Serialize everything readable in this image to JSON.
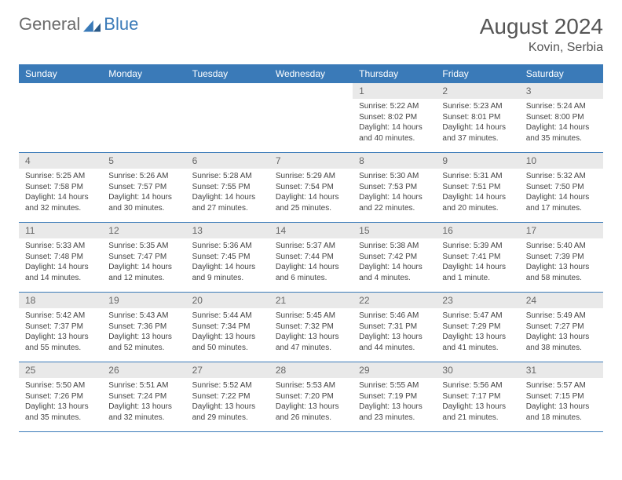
{
  "brand": {
    "part1": "General",
    "part2": "Blue"
  },
  "title": "August 2024",
  "location": "Kovin, Serbia",
  "colors": {
    "accent": "#3a7ab8",
    "daynum_bg": "#e9e9e9",
    "text": "#555"
  },
  "weekdays": [
    "Sunday",
    "Monday",
    "Tuesday",
    "Wednesday",
    "Thursday",
    "Friday",
    "Saturday"
  ],
  "weeks": [
    [
      null,
      null,
      null,
      null,
      {
        "n": "1",
        "sr": "5:22 AM",
        "ss": "8:02 PM",
        "dl": "14 hours and 40 minutes."
      },
      {
        "n": "2",
        "sr": "5:23 AM",
        "ss": "8:01 PM",
        "dl": "14 hours and 37 minutes."
      },
      {
        "n": "3",
        "sr": "5:24 AM",
        "ss": "8:00 PM",
        "dl": "14 hours and 35 minutes."
      }
    ],
    [
      {
        "n": "4",
        "sr": "5:25 AM",
        "ss": "7:58 PM",
        "dl": "14 hours and 32 minutes."
      },
      {
        "n": "5",
        "sr": "5:26 AM",
        "ss": "7:57 PM",
        "dl": "14 hours and 30 minutes."
      },
      {
        "n": "6",
        "sr": "5:28 AM",
        "ss": "7:55 PM",
        "dl": "14 hours and 27 minutes."
      },
      {
        "n": "7",
        "sr": "5:29 AM",
        "ss": "7:54 PM",
        "dl": "14 hours and 25 minutes."
      },
      {
        "n": "8",
        "sr": "5:30 AM",
        "ss": "7:53 PM",
        "dl": "14 hours and 22 minutes."
      },
      {
        "n": "9",
        "sr": "5:31 AM",
        "ss": "7:51 PM",
        "dl": "14 hours and 20 minutes."
      },
      {
        "n": "10",
        "sr": "5:32 AM",
        "ss": "7:50 PM",
        "dl": "14 hours and 17 minutes."
      }
    ],
    [
      {
        "n": "11",
        "sr": "5:33 AM",
        "ss": "7:48 PM",
        "dl": "14 hours and 14 minutes."
      },
      {
        "n": "12",
        "sr": "5:35 AM",
        "ss": "7:47 PM",
        "dl": "14 hours and 12 minutes."
      },
      {
        "n": "13",
        "sr": "5:36 AM",
        "ss": "7:45 PM",
        "dl": "14 hours and 9 minutes."
      },
      {
        "n": "14",
        "sr": "5:37 AM",
        "ss": "7:44 PM",
        "dl": "14 hours and 6 minutes."
      },
      {
        "n": "15",
        "sr": "5:38 AM",
        "ss": "7:42 PM",
        "dl": "14 hours and 4 minutes."
      },
      {
        "n": "16",
        "sr": "5:39 AM",
        "ss": "7:41 PM",
        "dl": "14 hours and 1 minute."
      },
      {
        "n": "17",
        "sr": "5:40 AM",
        "ss": "7:39 PM",
        "dl": "13 hours and 58 minutes."
      }
    ],
    [
      {
        "n": "18",
        "sr": "5:42 AM",
        "ss": "7:37 PM",
        "dl": "13 hours and 55 minutes."
      },
      {
        "n": "19",
        "sr": "5:43 AM",
        "ss": "7:36 PM",
        "dl": "13 hours and 52 minutes."
      },
      {
        "n": "20",
        "sr": "5:44 AM",
        "ss": "7:34 PM",
        "dl": "13 hours and 50 minutes."
      },
      {
        "n": "21",
        "sr": "5:45 AM",
        "ss": "7:32 PM",
        "dl": "13 hours and 47 minutes."
      },
      {
        "n": "22",
        "sr": "5:46 AM",
        "ss": "7:31 PM",
        "dl": "13 hours and 44 minutes."
      },
      {
        "n": "23",
        "sr": "5:47 AM",
        "ss": "7:29 PM",
        "dl": "13 hours and 41 minutes."
      },
      {
        "n": "24",
        "sr": "5:49 AM",
        "ss": "7:27 PM",
        "dl": "13 hours and 38 minutes."
      }
    ],
    [
      {
        "n": "25",
        "sr": "5:50 AM",
        "ss": "7:26 PM",
        "dl": "13 hours and 35 minutes."
      },
      {
        "n": "26",
        "sr": "5:51 AM",
        "ss": "7:24 PM",
        "dl": "13 hours and 32 minutes."
      },
      {
        "n": "27",
        "sr": "5:52 AM",
        "ss": "7:22 PM",
        "dl": "13 hours and 29 minutes."
      },
      {
        "n": "28",
        "sr": "5:53 AM",
        "ss": "7:20 PM",
        "dl": "13 hours and 26 minutes."
      },
      {
        "n": "29",
        "sr": "5:55 AM",
        "ss": "7:19 PM",
        "dl": "13 hours and 23 minutes."
      },
      {
        "n": "30",
        "sr": "5:56 AM",
        "ss": "7:17 PM",
        "dl": "13 hours and 21 minutes."
      },
      {
        "n": "31",
        "sr": "5:57 AM",
        "ss": "7:15 PM",
        "dl": "13 hours and 18 minutes."
      }
    ]
  ],
  "labels": {
    "sunrise": "Sunrise:",
    "sunset": "Sunset:",
    "daylight": "Daylight:"
  }
}
